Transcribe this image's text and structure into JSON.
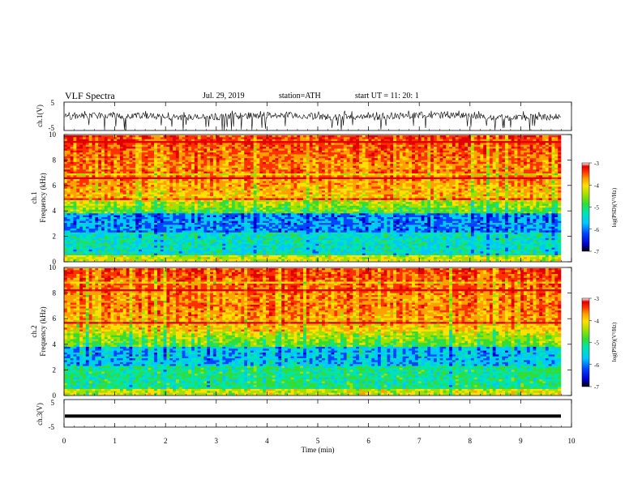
{
  "header": {
    "title": "VLF Spectra",
    "date": "Jul. 29, 2019",
    "station": "station=ATH",
    "start_ut": "start UT =   11: 20: 1"
  },
  "colormap": [
    "#000000",
    "#0000cc",
    "#0044ff",
    "#00c8ff",
    "#00e5b0",
    "#33dd33",
    "#a0e000",
    "#ffe000",
    "#ffa000",
    "#ff3000",
    "#e00000",
    "#ffffff"
  ],
  "chart_data": [
    {
      "type": "line",
      "name": "ch1-waveform",
      "ylabel": "ch.1(V)",
      "ylim": [
        -5,
        5
      ],
      "y_ticks": [
        "5",
        "-5"
      ],
      "x_range_min": [
        0,
        10
      ],
      "approx": {
        "baseline": 0,
        "min": -5,
        "max": 2
      }
    },
    {
      "type": "heatmap",
      "name": "ch1-spectrogram",
      "ylabel_line1": "ch.1",
      "ylabel_line2": "Frequency (kHz)",
      "ylim": [
        0,
        10
      ],
      "y_ticks": [
        "0",
        "2",
        "4",
        "6",
        "8",
        "10"
      ],
      "colorbar": {
        "label": "log(PSD)(V²/Hz)",
        "range": [
          -7,
          -3
        ],
        "ticks": [
          "-3",
          "-4",
          "-5",
          "-6",
          "-7"
        ]
      }
    },
    {
      "type": "heatmap",
      "name": "ch2-spectrogram",
      "ylabel_line1": "ch.2",
      "ylabel_line2": "Frequency (kHz)",
      "ylim": [
        0,
        10
      ],
      "y_ticks": [
        "0",
        "2",
        "4",
        "6",
        "8",
        "10"
      ],
      "colorbar": {
        "label": "log(PSD)(V²/Hz)",
        "range": [
          -7,
          -3
        ],
        "ticks": [
          "-3",
          "-4",
          "-5",
          "-6",
          "-7"
        ]
      }
    },
    {
      "type": "line",
      "name": "ch3-waveform",
      "ylabel": "ch.3(V)",
      "ylim": [
        -5,
        5
      ],
      "y_ticks": [
        "5",
        "-5"
      ],
      "approx": {
        "value": -1
      }
    }
  ],
  "xaxis": {
    "label": "Time (min)",
    "range": [
      0,
      10
    ],
    "ticks": [
      "0",
      "1",
      "2",
      "3",
      "4",
      "5",
      "6",
      "7",
      "8",
      "9",
      "10"
    ]
  }
}
